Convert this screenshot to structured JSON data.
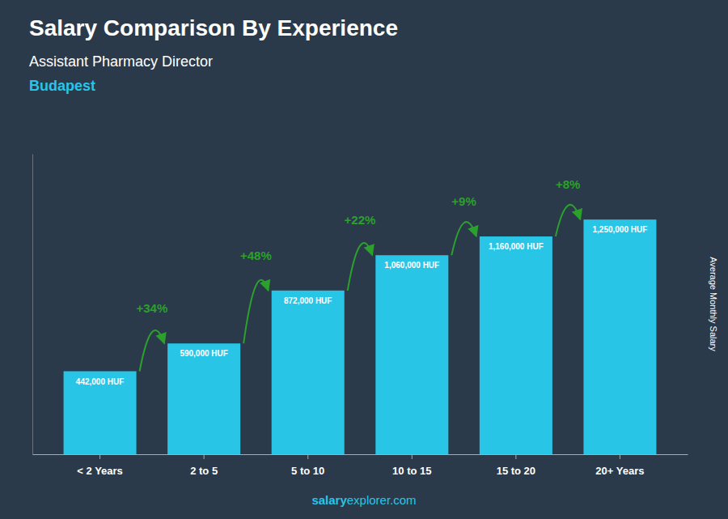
{
  "chart_data": {
    "type": "bar",
    "title": "Salary Comparison By Experience",
    "subtitle": "Assistant Pharmacy Director",
    "annotations": [
      "Budapest",
      "salary",
      "explorer.com"
    ],
    "categories": [
      "< 2 Years",
      "2 to 5",
      "5 to 10",
      "10 to 15",
      "15 to 20",
      "20+ Years"
    ],
    "values": [
      442000,
      590000,
      872000,
      1060000,
      1160000,
      1250000
    ],
    "value_labels": [
      "442,000 HUF",
      "590,000 HUF",
      "872,000 HUF",
      "1,060,000 HUF",
      "1,160,000 HUF",
      "1,250,000 HUF"
    ],
    "change_labels": [
      null,
      "+34%",
      "+48%",
      "+22%",
      "+9%",
      "+8%"
    ],
    "data_labels": true,
    "color": "#29c5e6",
    "ylabel": "Average Monthly Salary",
    "ylim": [
      0,
      1600000
    ],
    "tick_labels": "x"
  }
}
